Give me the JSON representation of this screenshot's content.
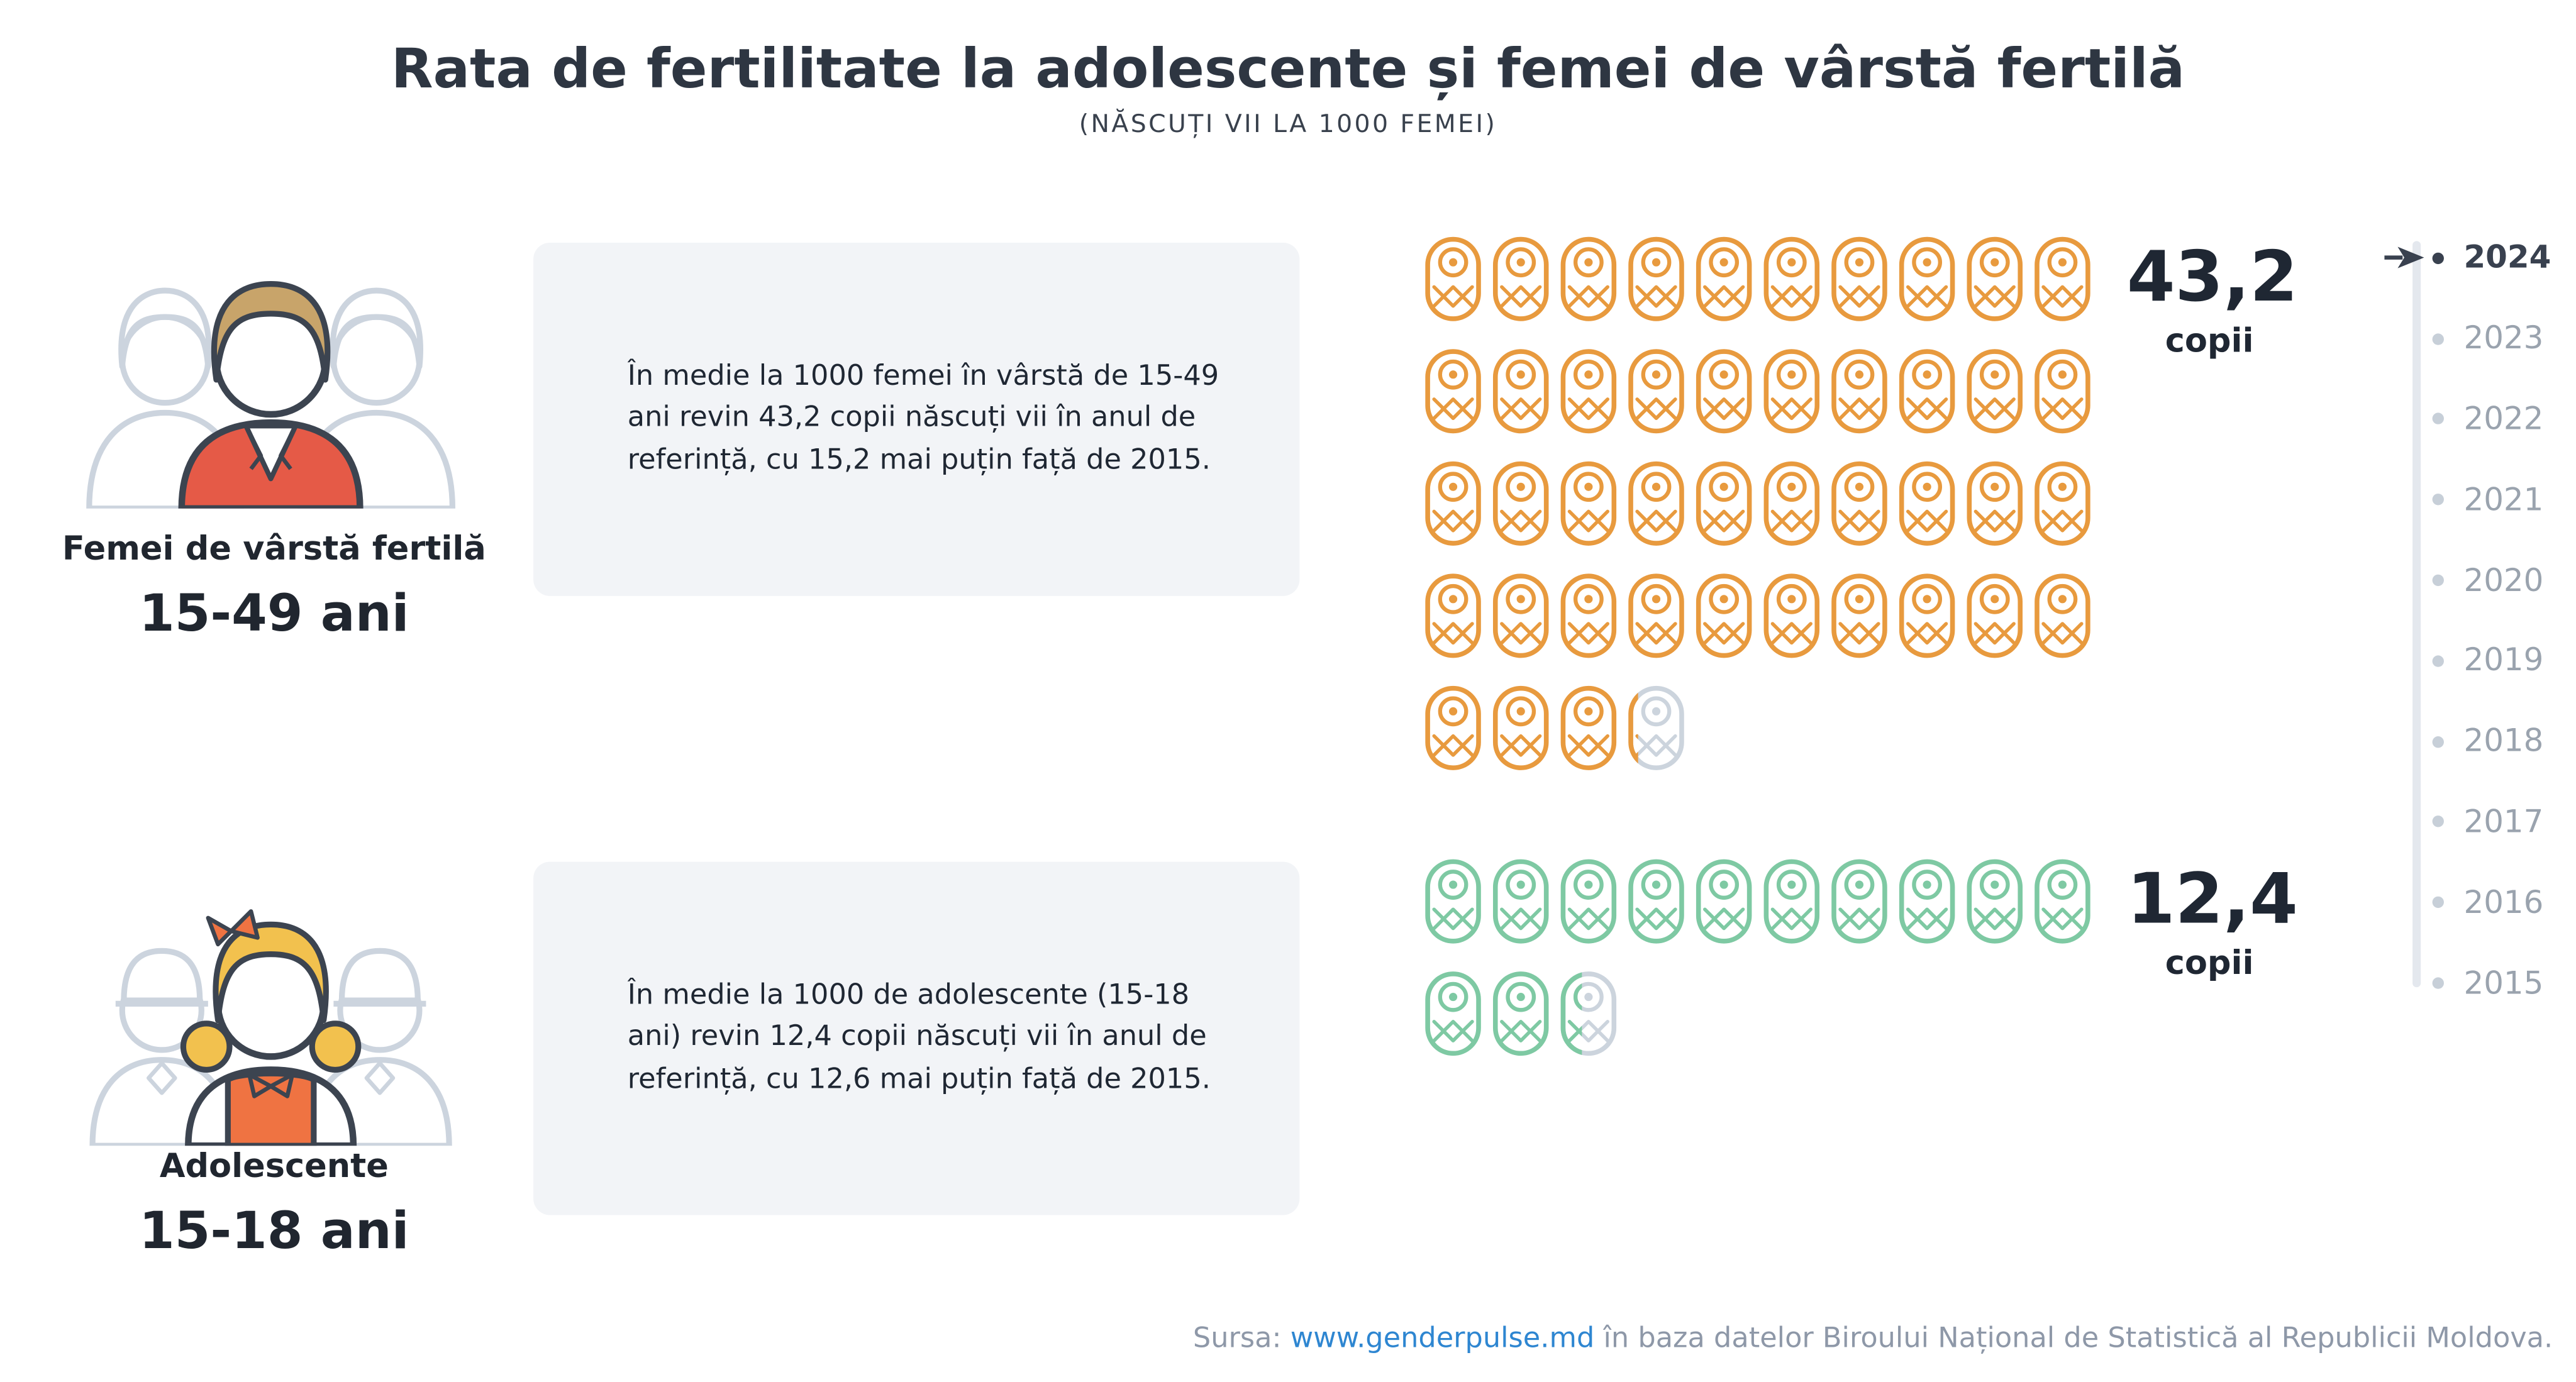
{
  "header": {
    "title": "Rata de fertilitate la adolescente și femei de vârstă fertilă",
    "subtitle": "(NĂSCUȚI VII LA 1000 FEMEI)"
  },
  "sections": [
    {
      "group_label": "Femei de vârstă fertilă",
      "age_range": "15-49 ani",
      "description": "În medie la 1000 femei în vârstă de 15-49 ani revin 43,2 copii născuți vii în anul de referință, cu 15,2 mai puțin față de 2015.",
      "value": 43.2,
      "value_label": "43,2",
      "unit": "copii",
      "icon_color": "#e89a3e"
    },
    {
      "group_label": "Adolescente",
      "age_range": "15-18 ani",
      "description": "În medie la 1000 de adolescente (15-18 ani) revin 12,4 copii născuți vii în anul de referință, cu 12,6 mai puțin față de 2015.",
      "value": 12.4,
      "value_label": "12,4",
      "unit": "copii",
      "icon_color": "#7ec9a3"
    }
  ],
  "timeline": {
    "selected": "2024",
    "years": [
      "2024",
      "2023",
      "2022",
      "2021",
      "2020",
      "2019",
      "2018",
      "2017",
      "2016",
      "2015"
    ]
  },
  "footer": {
    "prefix": "Sursa: ",
    "link": "www.genderpulse.md",
    "suffix": " în baza datelor Biroului Național de Statistică al Republicii Moldova."
  },
  "colors": {
    "accent_orange": "#e89a3e",
    "accent_green": "#7ec9a3",
    "partial_gray": "#ccd4dd",
    "card_background": "#f2f4f7",
    "link_blue": "#2e86d1",
    "timeline_active": "#39414f",
    "timeline_inactive": "#9aa3ae"
  },
  "chart_data": {
    "type": "bar",
    "subtype": "pictogram",
    "title": "Rata de fertilitate la adolescente și femei de vârstă fertilă",
    "subtitle": "(NĂSCUȚI VII LA 1000 FEMEI)",
    "unit": "copii născuți vii la 1000 femei",
    "year_selected": "2024",
    "years_available": [
      "2024",
      "2023",
      "2022",
      "2021",
      "2020",
      "2019",
      "2018",
      "2017",
      "2016",
      "2015"
    ],
    "categories": [
      "Femei de vârstă fertilă (15-49 ani)",
      "Adolescente (15-18 ani)"
    ],
    "values": [
      43.2,
      12.4
    ],
    "change_vs_2015": [
      -15.2,
      -12.6
    ],
    "icons_per_row": 10,
    "legend_position": "none",
    "grid": false
  }
}
